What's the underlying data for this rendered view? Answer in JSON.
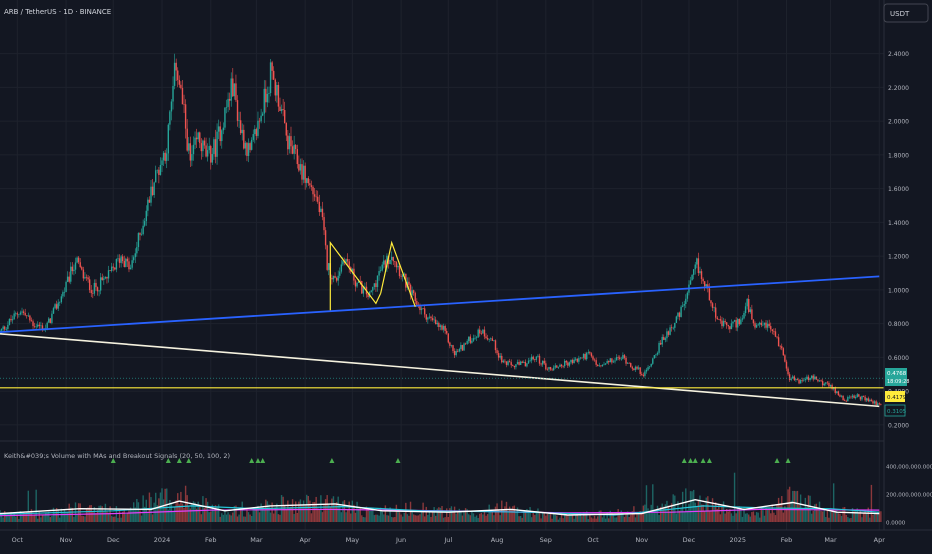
{
  "header": {
    "symbol_title": "ARB / TetherUS · 1D · BINANCE",
    "currency_button": "USDT",
    "indicator_title": "Keith&#039;s Volume with MAs and Breakout Signals (20, 50, 100, 2)"
  },
  "colors": {
    "background": "#131722",
    "grid": "#1e222d",
    "up": "#26a69a",
    "down": "#ef5350",
    "blue_line": "#2962ff",
    "white_line": "#f5f2df",
    "yellow": "#ffeb3b",
    "axis_text": "#b2b5be",
    "ma20": "#ffffff",
    "ma50": "#26c6da",
    "ma100": "#e040fb"
  },
  "price_axis": {
    "ticks": [
      "2.4000",
      "2.2000",
      "2.0000",
      "1.8000",
      "1.6000",
      "1.4000",
      "1.2000",
      "1.0000",
      "0.8000",
      "0.6000",
      "0.4000",
      "0.2000"
    ],
    "tick_values": [
      2.4,
      2.2,
      2.0,
      1.8,
      1.6,
      1.4,
      1.2,
      1.0,
      0.8,
      0.6,
      0.4,
      0.2
    ]
  },
  "price_labels": {
    "current_price": "0.4768",
    "countdown": "18:09:28",
    "yellow_level": "0.4179",
    "low_level": "0.3105"
  },
  "volume_axis": {
    "ticks": [
      "400,000,000.0000",
      "200,000,000.0000",
      "0.0000"
    ],
    "tick_values": [
      400000000,
      200000000,
      0
    ]
  },
  "time_axis": {
    "labels": [
      "Oct",
      "Nov",
      "Dec",
      "2024",
      "Feb",
      "Mar",
      "Apr",
      "May",
      "Jun",
      "Jul",
      "Aug",
      "Sep",
      "Oct",
      "Nov",
      "Dec",
      "2025",
      "Feb",
      "Mar",
      "Apr"
    ]
  },
  "chart_data": {
    "type": "candlestick",
    "ylim": [
      0.17,
      2.54
    ],
    "volume_ylim": [
      0,
      480000000
    ],
    "price_path": [
      [
        "2023-09-20",
        0.75
      ],
      [
        "2023-10-03",
        0.88
      ],
      [
        "2023-10-11",
        0.8
      ],
      [
        "2023-10-19",
        0.77
      ],
      [
        "2023-11-01",
        1.02
      ],
      [
        "2023-11-07",
        1.18
      ],
      [
        "2023-11-12",
        1.08
      ],
      [
        "2023-11-18",
        1.0
      ],
      [
        "2023-11-28",
        1.08
      ],
      [
        "2023-12-06",
        1.2
      ],
      [
        "2023-12-12",
        1.12
      ],
      [
        "2023-12-20",
        1.4
      ],
      [
        "2023-12-27",
        1.65
      ],
      [
        "2024-01-04",
        1.85
      ],
      [
        "2024-01-10",
        2.35
      ],
      [
        "2024-01-14",
        2.1
      ],
      [
        "2024-01-19",
        1.75
      ],
      [
        "2024-01-24",
        1.9
      ],
      [
        "2024-01-30",
        1.78
      ],
      [
        "2024-02-04",
        1.85
      ],
      [
        "2024-02-10",
        2.05
      ],
      [
        "2024-02-15",
        2.22
      ],
      [
        "2024-02-20",
        1.95
      ],
      [
        "2024-02-26",
        1.8
      ],
      [
        "2024-03-04",
        2.05
      ],
      [
        "2024-03-10",
        2.28
      ],
      [
        "2024-03-15",
        2.15
      ],
      [
        "2024-03-20",
        1.9
      ],
      [
        "2024-03-26",
        1.78
      ],
      [
        "2024-04-02",
        1.65
      ],
      [
        "2024-04-08",
        1.55
      ],
      [
        "2024-04-12",
        1.4
      ],
      [
        "2024-04-15",
        1.15
      ],
      [
        "2024-04-20",
        1.05
      ],
      [
        "2024-04-26",
        1.2
      ],
      [
        "2024-05-03",
        1.05
      ],
      [
        "2024-05-12",
        0.96
      ],
      [
        "2024-05-18",
        1.1
      ],
      [
        "2024-05-26",
        1.22
      ],
      [
        "2024-06-01",
        1.1
      ],
      [
        "2024-06-07",
        0.98
      ],
      [
        "2024-06-14",
        0.88
      ],
      [
        "2024-06-20",
        0.82
      ],
      [
        "2024-06-28",
        0.76
      ],
      [
        "2024-07-05",
        0.62
      ],
      [
        "2024-07-14",
        0.7
      ],
      [
        "2024-07-22",
        0.76
      ],
      [
        "2024-07-29",
        0.7
      ],
      [
        "2024-08-04",
        0.58
      ],
      [
        "2024-08-10",
        0.55
      ],
      [
        "2024-08-18",
        0.56
      ],
      [
        "2024-08-26",
        0.6
      ],
      [
        "2024-09-03",
        0.53
      ],
      [
        "2024-09-12",
        0.56
      ],
      [
        "2024-09-20",
        0.58
      ],
      [
        "2024-09-28",
        0.62
      ],
      [
        "2024-10-05",
        0.54
      ],
      [
        "2024-10-13",
        0.58
      ],
      [
        "2024-10-20",
        0.6
      ],
      [
        "2024-10-27",
        0.54
      ],
      [
        "2024-11-03",
        0.5
      ],
      [
        "2024-11-11",
        0.65
      ],
      [
        "2024-11-18",
        0.76
      ],
      [
        "2024-11-25",
        0.85
      ],
      [
        "2024-12-01",
        1.0
      ],
      [
        "2024-12-06",
        1.15
      ],
      [
        "2024-12-10",
        1.05
      ],
      [
        "2024-12-15",
        0.95
      ],
      [
        "2024-12-20",
        0.8
      ],
      [
        "2024-12-27",
        0.78
      ],
      [
        "2025-01-04",
        0.83
      ],
      [
        "2025-01-07",
        0.92
      ],
      [
        "2025-01-12",
        0.76
      ],
      [
        "2025-01-18",
        0.8
      ],
      [
        "2025-01-24",
        0.75
      ],
      [
        "2025-01-30",
        0.62
      ],
      [
        "2025-02-03",
        0.48
      ],
      [
        "2025-02-09",
        0.46
      ],
      [
        "2025-02-17",
        0.48
      ],
      [
        "2025-02-24",
        0.45
      ],
      [
        "2025-03-02",
        0.42
      ],
      [
        "2025-03-10",
        0.35
      ],
      [
        "2025-03-18",
        0.37
      ],
      [
        "2025-03-27",
        0.34
      ],
      [
        "2025-04-01",
        0.32
      ]
    ],
    "lines": {
      "blue_trendline": {
        "from": [
          "2023-09-20",
          0.75
        ],
        "to": [
          "2025-04-01",
          1.08
        ]
      },
      "white_trendline": {
        "from": [
          "2023-09-20",
          0.74
        ],
        "to": [
          "2025-04-01",
          0.31
        ]
      },
      "yellow_horizontal": 0.42,
      "yellow_wedge_1": [
        [
          "2024-04-17",
          0.88
        ],
        [
          "2024-04-17",
          1.28
        ],
        [
          "2024-05-16",
          0.92
        ],
        [
          "2024-05-19",
          0.98
        ]
      ],
      "yellow_wedge_2": [
        [
          "2024-05-19",
          0.98
        ],
        [
          "2024-05-26",
          1.28
        ],
        [
          "2024-06-10",
          0.9
        ]
      ]
    },
    "breakout_signals": [
      "2023-12-01",
      "2024-01-05",
      "2024-01-12",
      "2024-01-18",
      "2024-02-27",
      "2024-03-02",
      "2024-03-05",
      "2024-04-18",
      "2024-05-30",
      "2024-11-28",
      "2024-12-02",
      "2024-12-05",
      "2024-12-10",
      "2024-12-14",
      "2025-01-26",
      "2025-02-02"
    ],
    "volume_path": [
      [
        "2023-09-20",
        50000000
      ],
      [
        "2023-10-20",
        60000000
      ],
      [
        "2023-11-10",
        90000000
      ],
      [
        "2023-12-05",
        70000000
      ],
      [
        "2024-01-10",
        180000000
      ],
      [
        "2024-02-05",
        80000000
      ],
      [
        "2024-03-10",
        110000000
      ],
      [
        "2024-04-15",
        130000000
      ],
      [
        "2024-05-15",
        70000000
      ],
      [
        "2024-06-10",
        90000000
      ],
      [
        "2024-07-10",
        60000000
      ],
      [
        "2024-08-05",
        90000000
      ],
      [
        "2024-09-10",
        40000000
      ],
      [
        "2024-10-10",
        50000000
      ],
      [
        "2024-11-15",
        100000000
      ],
      [
        "2024-12-05",
        170000000
      ],
      [
        "2024-12-25",
        80000000
      ],
      [
        "2025-01-20",
        60000000
      ],
      [
        "2025-02-03",
        160000000
      ],
      [
        "2025-03-01",
        70000000
      ],
      [
        "2025-04-01",
        60000000
      ]
    ],
    "ma_lines": {
      "ma20": [
        [
          "2023-09-20",
          60000000
        ],
        [
          "2023-11-10",
          95000000
        ],
        [
          "2023-12-25",
          90000000
        ],
        [
          "2024-01-12",
          150000000
        ],
        [
          "2024-02-10",
          80000000
        ],
        [
          "2024-03-10",
          115000000
        ],
        [
          "2024-04-20",
          130000000
        ],
        [
          "2024-05-20",
          80000000
        ],
        [
          "2024-07-01",
          70000000
        ],
        [
          "2024-08-10",
          90000000
        ],
        [
          "2024-09-15",
          50000000
        ],
        [
          "2024-11-01",
          60000000
        ],
        [
          "2024-12-05",
          160000000
        ],
        [
          "2025-01-05",
          90000000
        ],
        [
          "2025-02-05",
          140000000
        ],
        [
          "2025-03-05",
          70000000
        ],
        [
          "2025-04-01",
          60000000
        ]
      ],
      "ma50": [
        [
          "2023-09-20",
          55000000
        ],
        [
          "2023-12-01",
          80000000
        ],
        [
          "2024-01-20",
          115000000
        ],
        [
          "2024-03-01",
          95000000
        ],
        [
          "2024-04-25",
          110000000
        ],
        [
          "2024-06-15",
          80000000
        ],
        [
          "2024-08-20",
          70000000
        ],
        [
          "2024-10-15",
          50000000
        ],
        [
          "2024-12-10",
          115000000
        ],
        [
          "2025-01-20",
          100000000
        ],
        [
          "2025-03-01",
          95000000
        ],
        [
          "2025-04-01",
          70000000
        ]
      ],
      "ma100": [
        [
          "2023-09-20",
          45000000
        ],
        [
          "2023-12-01",
          60000000
        ],
        [
          "2024-02-01",
          85000000
        ],
        [
          "2024-04-15",
          90000000
        ],
        [
          "2024-07-01",
          80000000
        ],
        [
          "2024-09-15",
          65000000
        ],
        [
          "2024-11-20",
          70000000
        ],
        [
          "2025-01-15",
          90000000
        ],
        [
          "2025-04-01",
          85000000
        ]
      ]
    }
  }
}
